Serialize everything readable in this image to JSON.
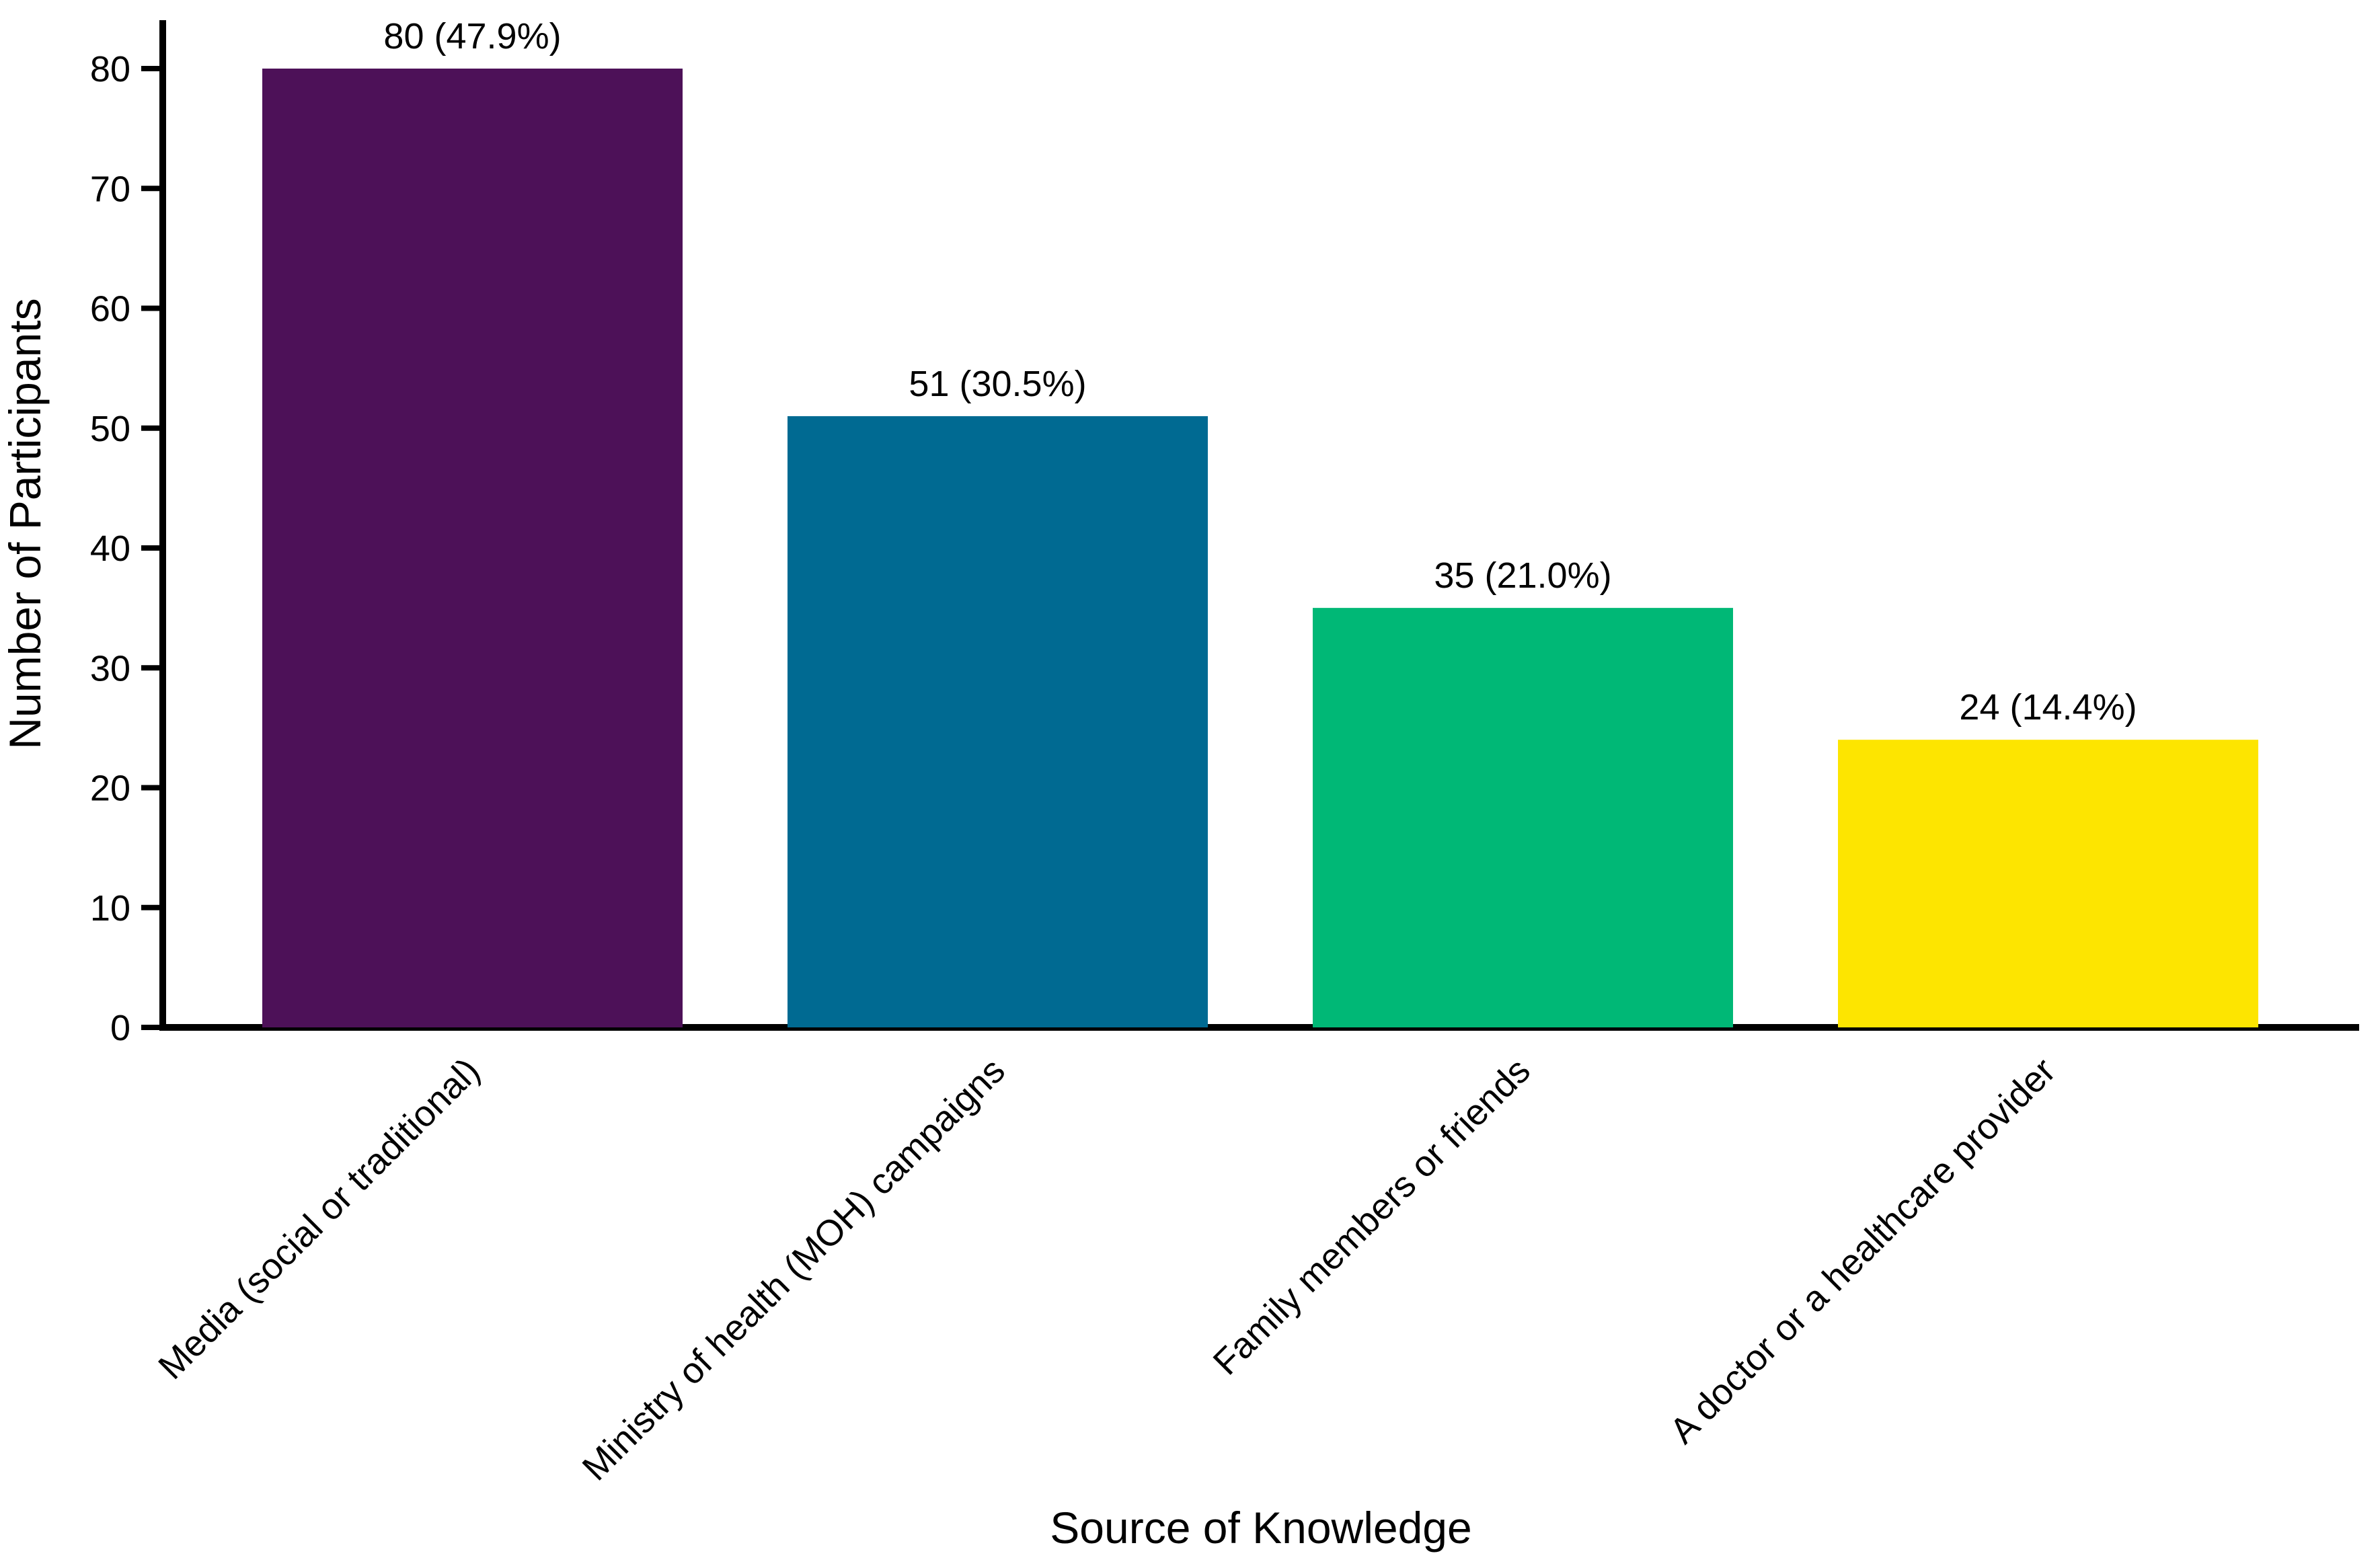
{
  "chart_data": {
    "type": "bar",
    "title": "",
    "xlabel": "Source of Knowledge",
    "ylabel": "Number of Participants",
    "categories": [
      "Media (social or traditional)",
      "Ministry of health (MOH) campaigns",
      "Family members or friends",
      "A doctor or a healthcare provider"
    ],
    "values": [
      80,
      51,
      35,
      24
    ],
    "percentages": [
      47.9,
      30.5,
      21.0,
      14.4
    ],
    "bar_labels": [
      "80 (47.9%)",
      "51 (30.5%)",
      "35 (21.0%)",
      "24 (14.4%)"
    ],
    "colors": [
      "#4D1158",
      "#006A92",
      "#00B876",
      "#FDE500"
    ],
    "ylim": [
      0,
      80
    ],
    "yticks": [
      0,
      10,
      20,
      30,
      40,
      50,
      60,
      70,
      80
    ],
    "grid": false,
    "legend": "none",
    "axis_color": "#000000",
    "background_color": "#ffffff",
    "x_tick_rotation_deg": 45
  }
}
